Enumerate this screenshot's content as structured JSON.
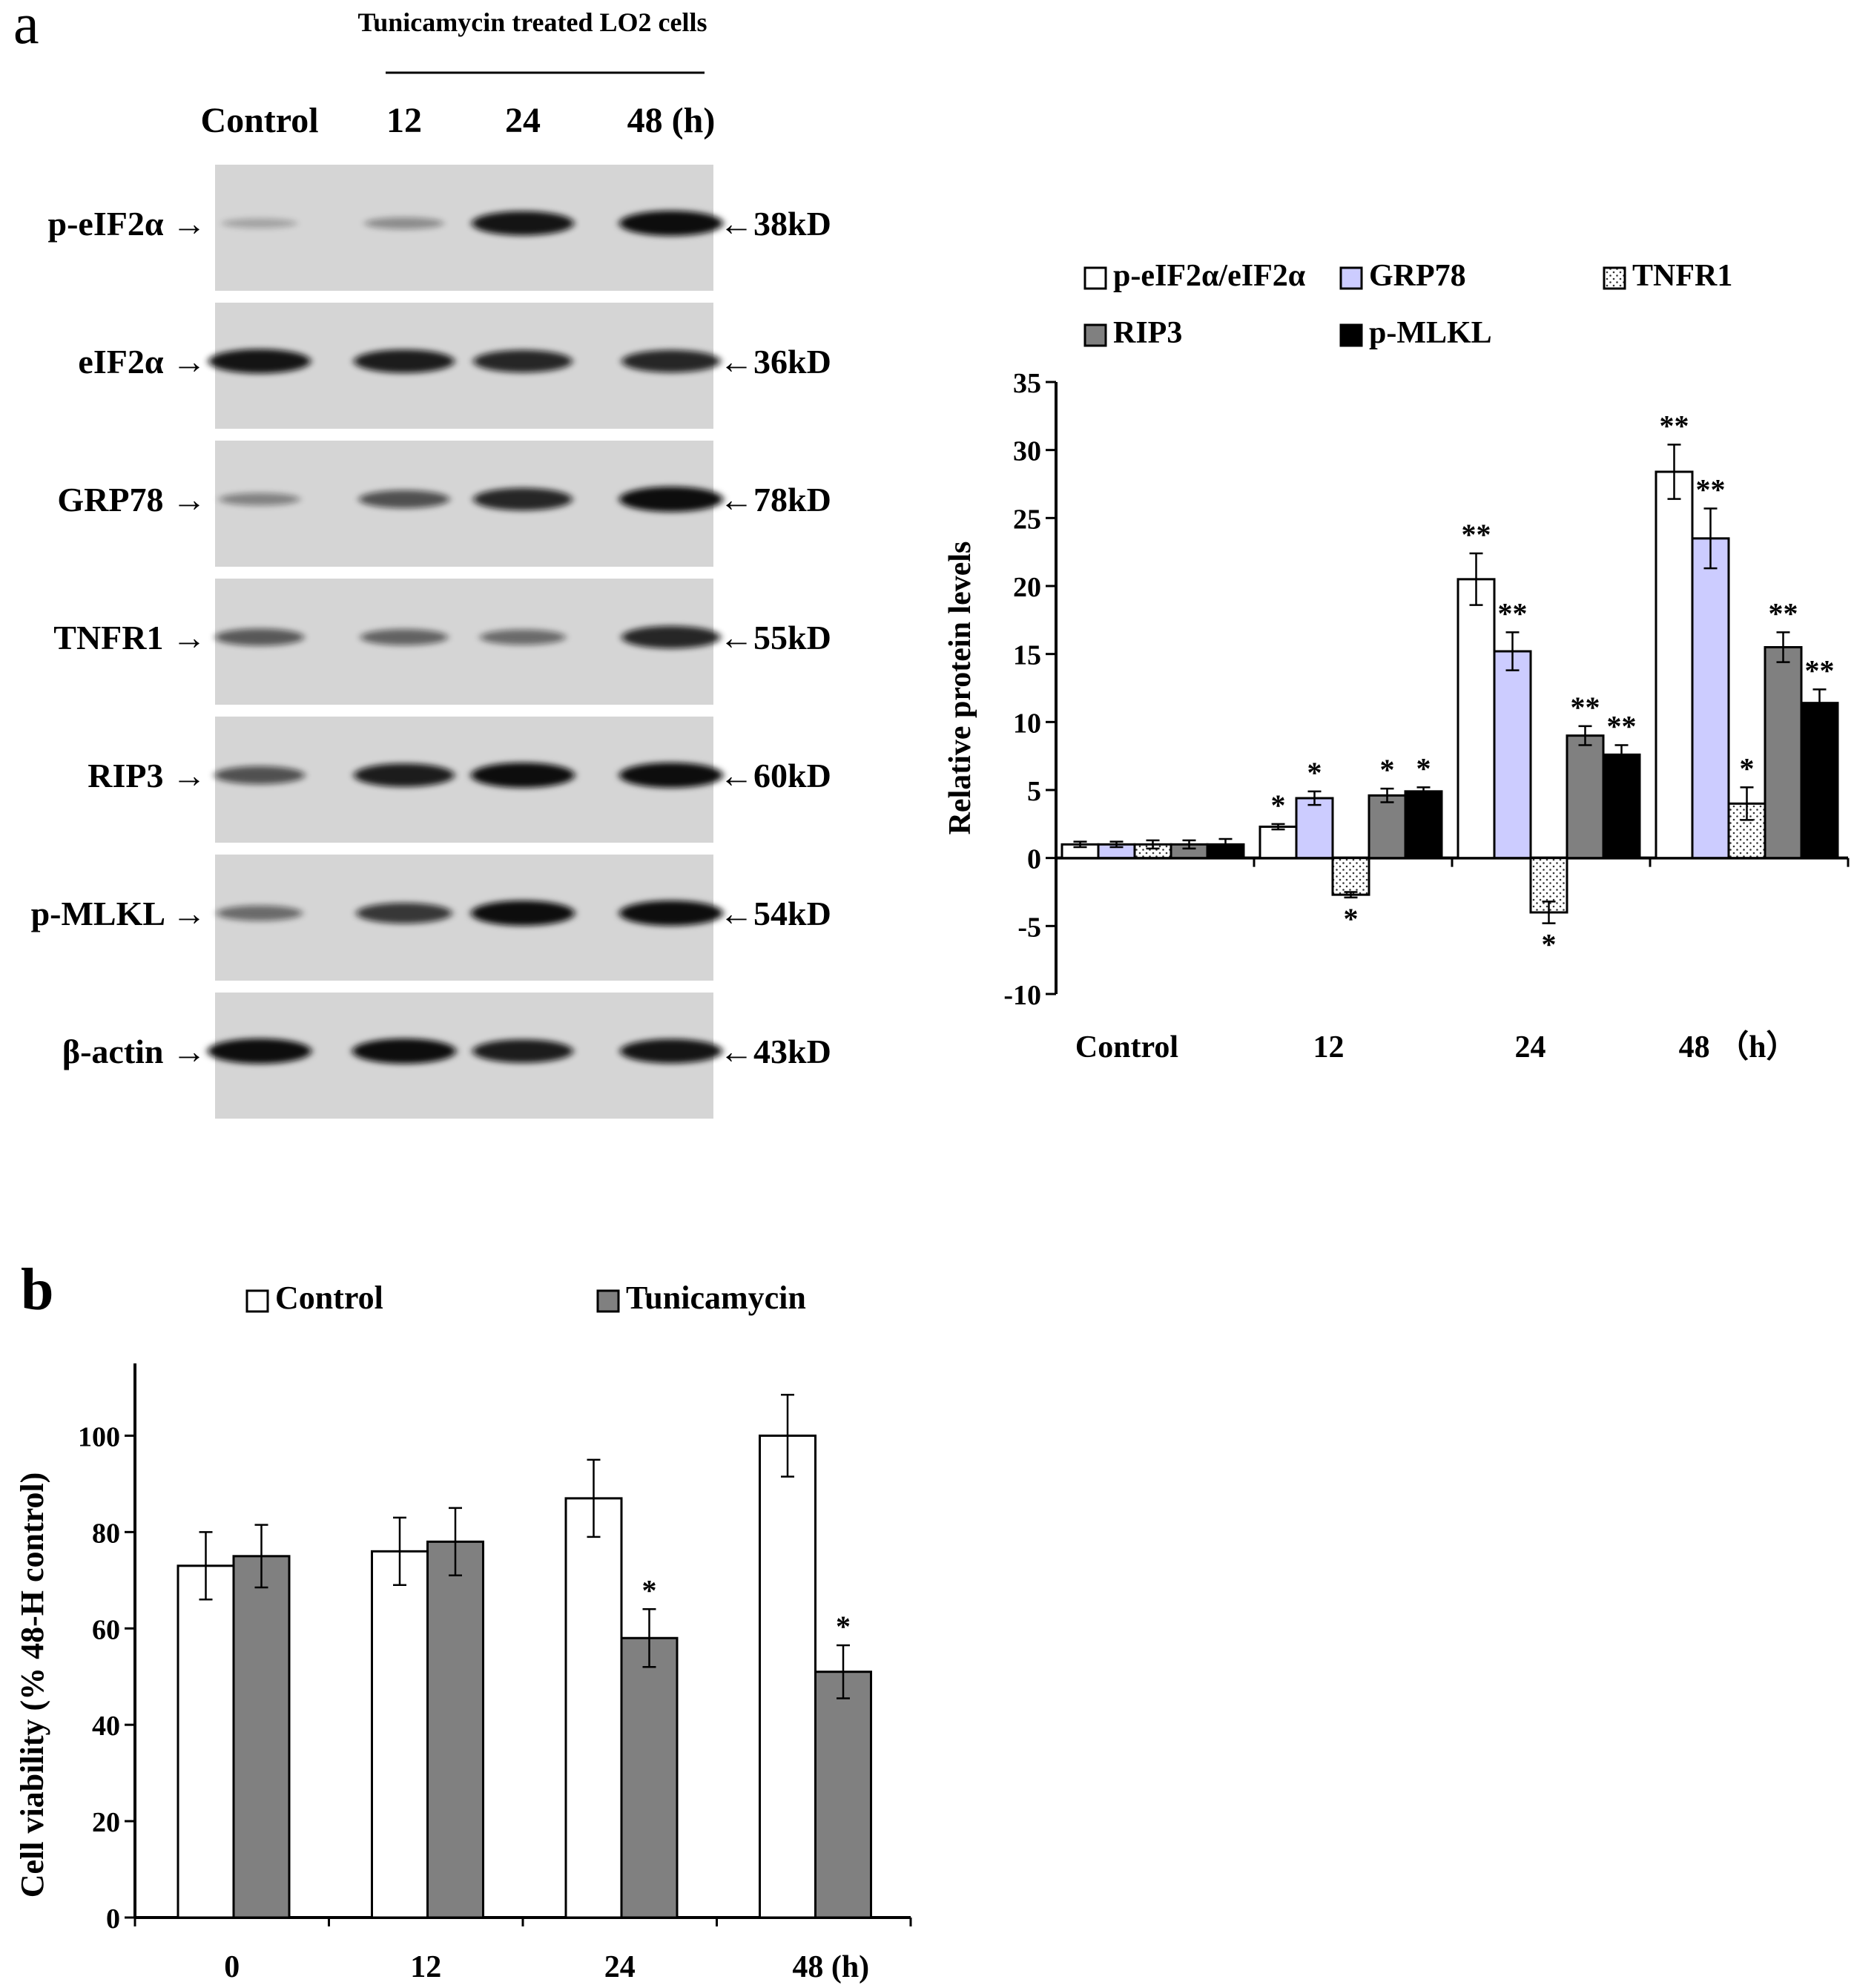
{
  "panel_a": {
    "letter": "a",
    "treatment_title": "Tunicamycin treated LO2 cells",
    "lane_labels": [
      "Control",
      "12",
      "24",
      "48 (h)"
    ],
    "blots": [
      {
        "protein": "p-eIF2α →",
        "kd": "←38kD",
        "intensity": [
          0.12,
          0.25,
          0.95,
          1.0
        ]
      },
      {
        "protein": "eIF2α →",
        "kd": "←36kD",
        "intensity": [
          0.95,
          0.9,
          0.85,
          0.85
        ]
      },
      {
        "protein": "GRP78 →",
        "kd": "←78kD",
        "intensity": [
          0.3,
          0.6,
          0.85,
          1.0
        ]
      },
      {
        "protein": "TNFR1 →",
        "kd": "←55kD",
        "intensity": [
          0.55,
          0.5,
          0.45,
          0.85
        ]
      },
      {
        "protein": "RIP3 →",
        "kd": "←60kD",
        "intensity": [
          0.6,
          0.9,
          1.0,
          1.0
        ]
      },
      {
        "protein": "p-MLKL →",
        "kd": "←54kD",
        "intensity": [
          0.45,
          0.75,
          1.0,
          1.0
        ]
      },
      {
        "protein": "β-actin →",
        "kd": "←43kD",
        "intensity": [
          1.0,
          1.0,
          0.9,
          0.95
        ]
      }
    ]
  },
  "panel_b": {
    "letter": "b"
  },
  "chart_data": [
    {
      "type": "bar",
      "categories": [
        "Control",
        "12",
        "24",
        "48 （h）"
      ],
      "series": [
        {
          "name": "p-eIF2α/eIF2α",
          "values": [
            1.0,
            2.3,
            20.5,
            28.4
          ],
          "errors": [
            0.2,
            0.2,
            1.9,
            2.0
          ],
          "marks": [
            "",
            "*",
            "**",
            "**"
          ],
          "color": "#ffffff",
          "pattern": "none"
        },
        {
          "name": "GRP78",
          "values": [
            1.0,
            4.4,
            15.2,
            23.5
          ],
          "errors": [
            0.2,
            0.5,
            1.4,
            2.2
          ],
          "marks": [
            "",
            "*",
            "**",
            "**"
          ],
          "color": "#ccccff",
          "pattern": "none"
        },
        {
          "name": "TNFR1",
          "values": [
            1.0,
            -2.7,
            -4.0,
            4.0
          ],
          "errors": [
            0.3,
            0.2,
            0.8,
            1.2
          ],
          "marks": [
            "",
            "*",
            "*",
            "*"
          ],
          "color": "#ffffff",
          "pattern": "dots"
        },
        {
          "name": "RIP3",
          "values": [
            1.0,
            4.6,
            9.0,
            15.5
          ],
          "errors": [
            0.3,
            0.5,
            0.7,
            1.1
          ],
          "marks": [
            "",
            "*",
            "**",
            "**"
          ],
          "color": "#808080",
          "pattern": "none"
        },
        {
          "name": "p-MLKL",
          "values": [
            1.0,
            4.9,
            7.6,
            11.4
          ],
          "errors": [
            0.4,
            0.3,
            0.7,
            1.0
          ],
          "marks": [
            "",
            "*",
            "**",
            "**"
          ],
          "color": "#000000",
          "pattern": "none"
        }
      ],
      "ylabel": "Relative protein levels",
      "xlabel": "",
      "ylim": [
        -10,
        35
      ],
      "yticks": [
        -10,
        -5,
        0,
        5,
        10,
        15,
        20,
        25,
        30,
        35
      ],
      "grid": false,
      "legend": "top"
    },
    {
      "type": "bar",
      "categories": [
        "0",
        "12",
        "24",
        "48 (h)"
      ],
      "series": [
        {
          "name": "Control",
          "values": [
            73,
            76,
            87,
            100
          ],
          "errors": [
            7,
            7,
            8,
            8.5
          ],
          "marks": [
            "",
            "",
            "",
            ""
          ],
          "color": "#ffffff"
        },
        {
          "name": "Tunicamycin",
          "values": [
            75,
            78,
            58,
            51
          ],
          "errors": [
            6.5,
            7,
            6,
            5.5
          ],
          "marks": [
            "",
            "",
            "*",
            "*"
          ],
          "color": "#808080"
        }
      ],
      "ylabel": "Cell viability (% 48-H control)",
      "xlabel": "",
      "ylim": [
        0,
        100
      ],
      "yticks": [
        0,
        20,
        40,
        60,
        80,
        100
      ],
      "grid": false,
      "legend": "top"
    }
  ]
}
